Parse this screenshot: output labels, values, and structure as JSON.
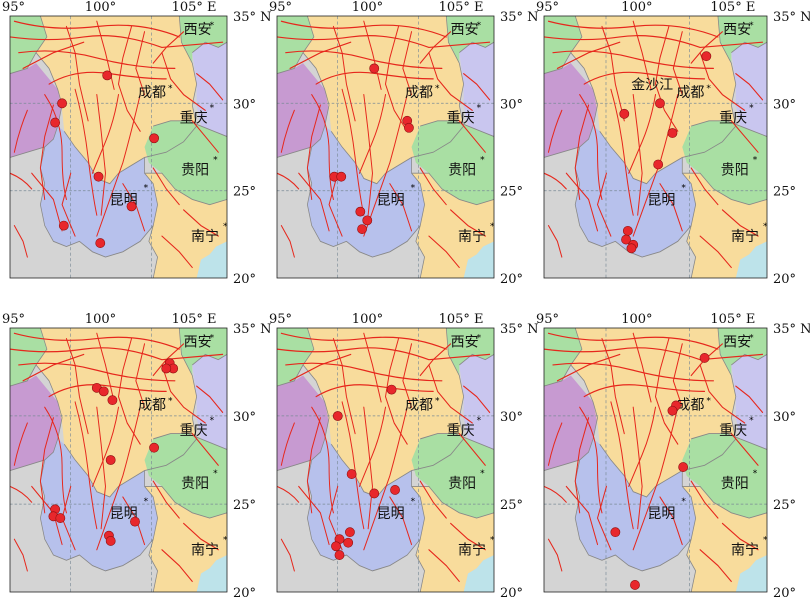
{
  "colors": {
    "ocean": "#bde3ea",
    "gray": "#d4d4d4",
    "purple": "#c79ad1",
    "yellow": "#f8dc9c",
    "blue": "#b7c1ec",
    "green": "#a9dfa3",
    "lavender": "#c9c6ef",
    "fault": "#e6271c",
    "quake": "#e8272c",
    "quake_stroke": "#8d1010"
  },
  "axis": {
    "lon_labels": [
      "95°",
      "100°",
      "105° E"
    ],
    "lat_labels": [
      "35° N",
      "30°",
      "25°",
      "20°"
    ]
  },
  "cities": {
    "xian": "西安",
    "chengdu": "成都",
    "chongqing": "重庆",
    "guiyang": "贵阳",
    "kunming": "昆明",
    "nanning": "南宁",
    "jinshajiang": "金沙江"
  },
  "panels": [
    {
      "id": "p1",
      "events": [
        [
          100.6,
          31.6
        ],
        [
          98.0,
          30.0
        ],
        [
          97.6,
          28.9
        ],
        [
          103.3,
          28.0
        ],
        [
          100.1,
          25.8
        ],
        [
          102.0,
          24.1
        ],
        [
          98.1,
          23.0
        ],
        [
          100.2,
          22.0
        ]
      ]
    },
    {
      "id": "p2",
      "events": [
        [
          100.6,
          32.0
        ],
        [
          102.5,
          29.0
        ],
        [
          102.6,
          28.6
        ],
        [
          98.3,
          25.8
        ],
        [
          98.7,
          25.8
        ],
        [
          99.8,
          23.8
        ],
        [
          100.2,
          23.3
        ],
        [
          99.9,
          22.8
        ]
      ]
    },
    {
      "id": "p3",
      "events": [
        [
          104.1,
          32.7
        ],
        [
          101.5,
          30.0
        ],
        [
          99.5,
          29.4
        ],
        [
          102.2,
          28.3
        ],
        [
          101.4,
          26.5
        ],
        [
          99.7,
          22.7
        ],
        [
          99.6,
          22.2
        ],
        [
          100.0,
          21.9
        ],
        [
          99.9,
          21.7
        ]
      ]
    },
    {
      "id": "p4",
      "events": [
        [
          104.2,
          33.0
        ],
        [
          104.4,
          32.7
        ],
        [
          104.0,
          32.7
        ],
        [
          100.0,
          31.6
        ],
        [
          100.4,
          31.4
        ],
        [
          100.9,
          30.9
        ],
        [
          103.3,
          28.2
        ],
        [
          100.8,
          27.5
        ],
        [
          97.6,
          24.7
        ],
        [
          97.5,
          24.3
        ],
        [
          97.9,
          24.2
        ],
        [
          102.2,
          24.0
        ],
        [
          100.7,
          23.2
        ],
        [
          100.8,
          22.9
        ]
      ]
    },
    {
      "id": "p5",
      "events": [
        [
          101.6,
          31.5
        ],
        [
          98.5,
          30.0
        ],
        [
          99.3,
          26.7
        ],
        [
          101.8,
          25.8
        ],
        [
          100.6,
          25.6
        ],
        [
          99.2,
          23.4
        ],
        [
          98.6,
          23.0
        ],
        [
          99.1,
          22.8
        ],
        [
          98.4,
          22.6
        ],
        [
          98.6,
          22.1
        ]
      ]
    },
    {
      "id": "p6",
      "events": [
        [
          104.0,
          33.3
        ],
        [
          102.4,
          30.6
        ],
        [
          102.2,
          30.3
        ],
        [
          102.8,
          27.1
        ],
        [
          99.0,
          23.4
        ],
        [
          100.1,
          20.4
        ]
      ]
    }
  ]
}
